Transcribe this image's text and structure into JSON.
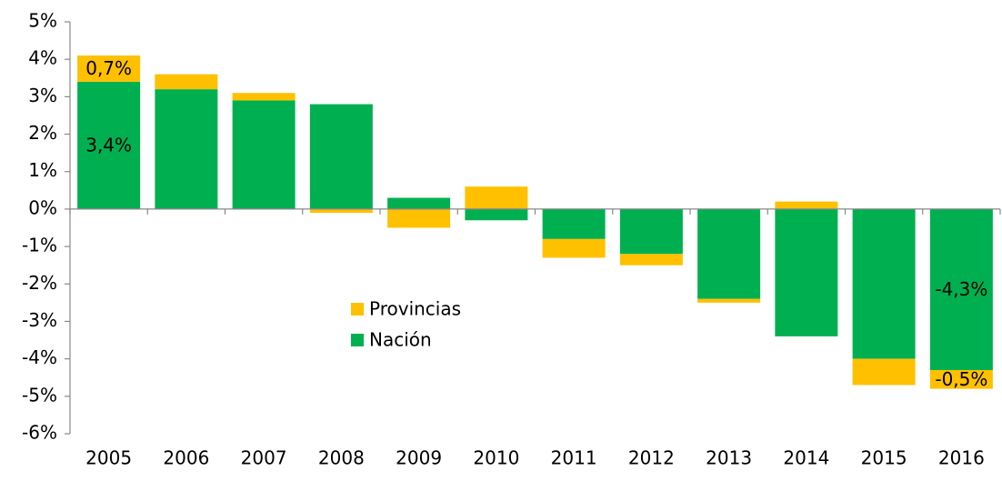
{
  "chart_data": {
    "type": "stacked_bar",
    "categories": [
      "2005",
      "2006",
      "2007",
      "2008",
      "2009",
      "2010",
      "2011",
      "2012",
      "2013",
      "2014",
      "2015",
      "2016"
    ],
    "series": [
      {
        "name": "Nación",
        "color": "#00b050",
        "values": [
          3.4,
          3.2,
          2.9,
          2.8,
          0.3,
          -0.3,
          -0.8,
          -1.2,
          -2.4,
          -3.4,
          -4.0,
          -4.3
        ],
        "value_labels": [
          "3,4%",
          null,
          null,
          null,
          null,
          null,
          null,
          null,
          null,
          null,
          null,
          "-4,3%"
        ]
      },
      {
        "name": "Provincias",
        "color": "#ffc000",
        "values": [
          0.7,
          0.4,
          0.2,
          -0.1,
          -0.5,
          0.6,
          -0.5,
          -0.3,
          -0.1,
          0.2,
          -0.7,
          -0.5
        ],
        "value_labels": [
          "0,7%",
          null,
          null,
          null,
          null,
          null,
          null,
          null,
          null,
          null,
          null,
          "-0,5%"
        ]
      }
    ],
    "ylim": [
      -6,
      5
    ],
    "yticks": [
      {
        "value": -6,
        "label": "-6%"
      },
      {
        "value": -5,
        "label": "-5%"
      },
      {
        "value": -4,
        "label": "-4%"
      },
      {
        "value": -3,
        "label": "-3%"
      },
      {
        "value": -2,
        "label": "-2%"
      },
      {
        "value": -1,
        "label": "-1%"
      },
      {
        "value": 0,
        "label": "0%"
      },
      {
        "value": 1,
        "label": "1%"
      },
      {
        "value": 2,
        "label": "2%"
      },
      {
        "value": 3,
        "label": "3%"
      },
      {
        "value": 4,
        "label": "4%"
      },
      {
        "value": 5,
        "label": "5%"
      }
    ],
    "legend": "center"
  }
}
